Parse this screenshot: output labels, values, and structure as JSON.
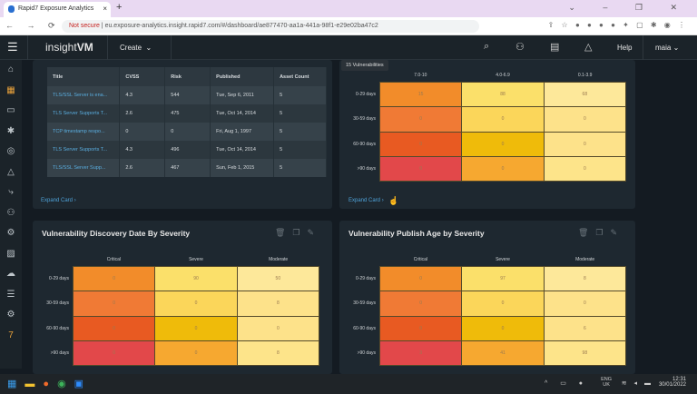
{
  "browser": {
    "tab_title": "Rapid7 Exposure Analytics",
    "not_secure": "Not secure",
    "url": "eu.exposure-analytics.insight.rapid7.com/#/dashboard/ae877470-aa1a-441a-98f1-e29e02ba47c2"
  },
  "topnav": {
    "brand_a": "insight",
    "brand_b": "VM",
    "create": "Create",
    "help": "Help",
    "user": "maia"
  },
  "table_card": {
    "columns": [
      "Title",
      "CVSS",
      "Risk",
      "Published",
      "Asset Count"
    ],
    "rows": [
      [
        "TLS/SSL Server is ena...",
        "4.3",
        "544",
        "Tue, Sep 6, 2011",
        "5"
      ],
      [
        "TLS Server Supports T...",
        "2.6",
        "475",
        "Tue, Oct 14, 2014",
        "5"
      ],
      [
        "TCP timestamp respo...",
        "0",
        "0",
        "Fri, Aug 1, 1997",
        "5"
      ],
      [
        "TLS Server Supports T...",
        "4.3",
        "496",
        "Tue, Oct 14, 2014",
        "5"
      ],
      [
        "TLS/SSL Server Supp...",
        "2.6",
        "467",
        "Sun, Feb 1, 2015",
        "5"
      ]
    ],
    "expand": "Expand Card ›"
  },
  "cvss_card": {
    "columns": [
      "7.0-10",
      "4.0-6.9",
      "0.1-3.9"
    ],
    "rows": [
      "0-29 days",
      "30-59 days",
      "60-90 days",
      ">90 days"
    ],
    "values": [
      [
        "15",
        "88",
        "68"
      ],
      [
        "0",
        "0",
        "0"
      ],
      [
        "0",
        "0",
        "0"
      ],
      [
        "0",
        "0",
        "0"
      ]
    ],
    "tooltip": "15 Vulnerabilities",
    "expand": "Expand Card ›"
  },
  "discovery_card": {
    "title": "Vulnerability Discovery Date By Severity",
    "columns": [
      "Critical",
      "Severe",
      "Moderate"
    ],
    "rows": [
      "0-29 days",
      "30-59 days",
      "60-90 days",
      ">90 days"
    ],
    "values": [
      [
        "0",
        "90",
        "50"
      ],
      [
        "0",
        "0",
        "8"
      ],
      [
        "0",
        "0",
        "0"
      ],
      [
        "0",
        "0",
        "8"
      ]
    ]
  },
  "publish_card": {
    "title": "Vulnerability Publish Age by Severity",
    "columns": [
      "Critical",
      "Severe",
      "Moderate"
    ],
    "rows": [
      "0-29 days",
      "30-59 days",
      "60-90 days",
      ">90 days"
    ],
    "values": [
      [
        "0",
        "97",
        "8"
      ],
      [
        "0",
        "0",
        "0"
      ],
      [
        "0",
        "0",
        "6"
      ],
      [
        "3",
        "41",
        "98"
      ]
    ]
  },
  "heat_colors": [
    [
      "#f28c2a",
      "#fbe06a",
      "#fde89a"
    ],
    [
      "#f07a35",
      "#fbd65a",
      "#fde28a"
    ],
    [
      "#e85a22",
      "#efbb0a",
      "#fde28a"
    ],
    [
      "#e2484a",
      "#f6a830",
      "#fde48a"
    ]
  ],
  "taskbar": {
    "lang1": "ENG",
    "lang2": "UK",
    "time": "12:31",
    "date": "30/01/2022"
  }
}
